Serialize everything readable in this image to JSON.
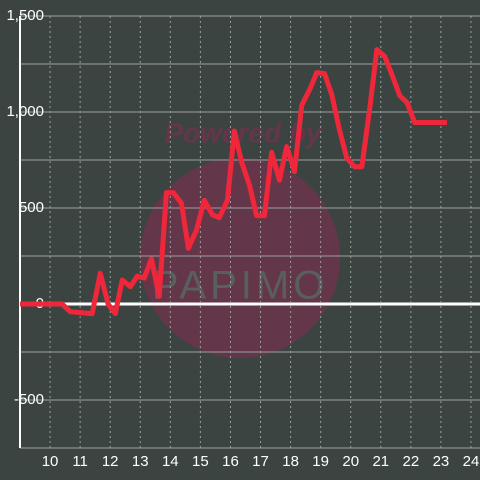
{
  "chart_data": {
    "type": "line",
    "watermark": [
      "Powered by",
      "PAPIMO"
    ],
    "x": [
      9,
      10.4,
      10.67,
      11.4,
      11.67,
      11.93,
      12.17,
      12.4,
      12.67,
      12.9,
      13.13,
      13.37,
      13.63,
      13.87,
      14.1,
      14.37,
      14.6,
      14.87,
      15.13,
      15.4,
      15.63,
      15.9,
      16.13,
      16.37,
      16.63,
      16.87,
      17.13,
      17.37,
      17.63,
      17.87,
      18.13,
      18.37,
      18.63,
      18.87,
      19.13,
      19.37,
      19.63,
      19.87,
      20.13,
      20.37,
      20.63,
      20.87,
      21.13,
      21.37,
      21.63,
      21.87,
      22.13,
      23.2
    ],
    "series": [
      {
        "color": "#f0273a",
        "values": [
          0,
          0,
          -40,
          -50,
          160,
          0,
          -50,
          125,
          90,
          145,
          135,
          235,
          40,
          580,
          580,
          525,
          290,
          385,
          540,
          465,
          450,
          540,
          900,
          740,
          620,
          460,
          460,
          790,
          645,
          820,
          690,
          1035,
          1115,
          1205,
          1200,
          1090,
          905,
          760,
          715,
          715,
          1015,
          1325,
          1290,
          1195,
          1085,
          1050,
          945,
          945
        ]
      }
    ],
    "xlim": [
      9,
      24.3
    ],
    "xticks": [
      10,
      11,
      12,
      13,
      14,
      15,
      16,
      17,
      18,
      19,
      20,
      21,
      22,
      23,
      24
    ],
    "ylim": [
      -750,
      1500
    ],
    "yticks": [
      -500,
      0,
      500,
      {
        "value": 1000,
        "label": "1,000"
      },
      {
        "value": 1500,
        "label": "1,500"
      }
    ],
    "yminorticks": [
      -750,
      -250,
      250,
      750,
      1250
    ],
    "grid": true
  }
}
